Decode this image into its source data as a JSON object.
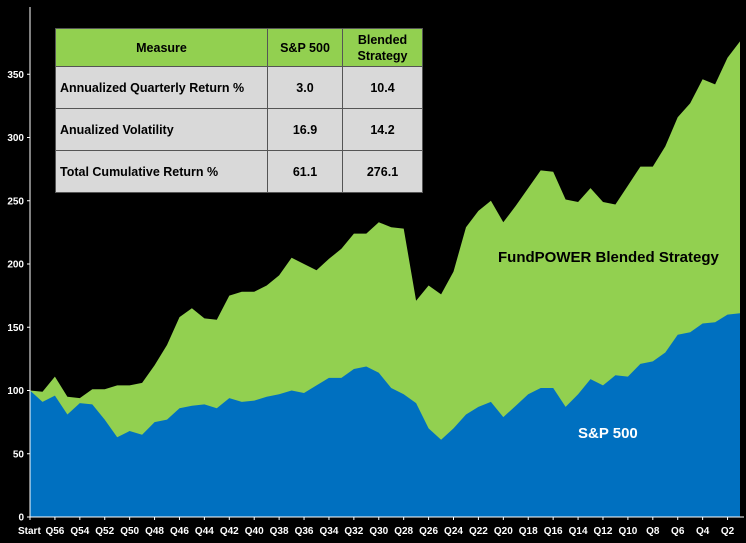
{
  "colors": {
    "background": "#000000",
    "sp500": "#0070c0",
    "blended": "#92d050",
    "label_blended": "#000000",
    "label_sp500": "#ffffff"
  },
  "table": {
    "headers": [
      "Measure",
      "S&P 500",
      "Blended Strategy"
    ],
    "rows": [
      {
        "measure": "Annualized Quarterly Return %",
        "sp500": "3.0",
        "blended": "10.4"
      },
      {
        "measure": "Anualized Volatility",
        "sp500": "16.9",
        "blended": "14.2"
      },
      {
        "measure": "Total Cumulative Return %",
        "sp500": "61.1",
        "blended": "276.1"
      }
    ]
  },
  "chart_data": {
    "type": "area",
    "ylim": [
      0,
      400
    ],
    "yticks": [
      0,
      50,
      100,
      150,
      200,
      250,
      300,
      350
    ],
    "xtick_labels": [
      "Start",
      "Q56",
      "Q54",
      "Q52",
      "Q50",
      "Q48",
      "Q46",
      "Q44",
      "Q42",
      "Q40",
      "Q38",
      "Q36",
      "Q34",
      "Q32",
      "Q30",
      "Q28",
      "Q26",
      "Q24",
      "Q22",
      "Q20",
      "Q18",
      "Q16",
      "Q14",
      "Q12",
      "Q10",
      "Q8",
      "Q6",
      "Q4",
      "Q2"
    ],
    "series": [
      {
        "name": "FundPOWER Blended Strategy",
        "values": [
          100,
          99,
          111,
          95,
          94,
          101,
          101,
          104,
          104,
          106,
          120,
          136,
          158,
          165,
          157,
          156,
          175,
          178,
          178,
          183,
          191,
          205,
          200,
          195,
          204,
          212,
          224,
          224,
          233,
          229,
          228,
          171,
          183,
          176,
          194,
          229,
          242,
          250,
          233,
          246,
          260,
          274,
          273,
          251,
          249,
          260,
          249,
          247,
          262,
          277,
          277,
          293,
          316,
          327,
          346,
          342,
          363,
          376
        ]
      },
      {
        "name": "S&P 500",
        "values": [
          100,
          91,
          96,
          81,
          90,
          89,
          77,
          63,
          68,
          65,
          75,
          77,
          86,
          88,
          89,
          86,
          94,
          91,
          92,
          95,
          97,
          100,
          98,
          104,
          110,
          110,
          117,
          119,
          114,
          102,
          97,
          90,
          70,
          61,
          70,
          81,
          87,
          91,
          79,
          88,
          97,
          102,
          102,
          87,
          97,
          109,
          104,
          112,
          111,
          121,
          123,
          130,
          144,
          146,
          153,
          154,
          160,
          161
        ]
      }
    ],
    "annotations": [
      {
        "text": "FundPOWER Blended Strategy",
        "series": "FundPOWER Blended Strategy"
      },
      {
        "text": "S&P 500",
        "series": "S&P 500"
      }
    ]
  }
}
